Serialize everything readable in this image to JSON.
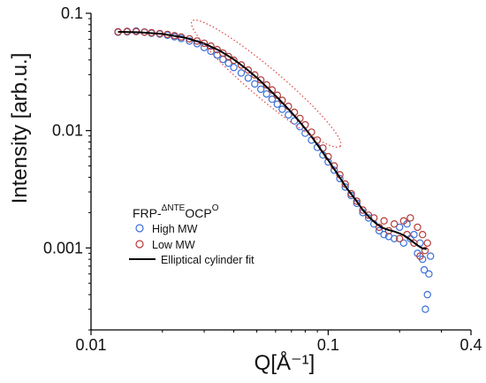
{
  "chart_data": {
    "type": "scatter",
    "title": "",
    "xlabel": "Q[Å⁻¹]",
    "ylabel": "Intensity [arb.u.]",
    "x_scale": "log",
    "y_scale": "log",
    "xlim": [
      0.01,
      0.4
    ],
    "ylim": [
      0.0002,
      0.1
    ],
    "x_ticks": [
      {
        "value": 0.01,
        "label": "0.01"
      },
      {
        "value": 0.1,
        "label": "0.1"
      },
      {
        "value": 0.4,
        "label": "0.4"
      }
    ],
    "y_ticks": [
      {
        "value": 0.1,
        "label": "0.1"
      },
      {
        "value": 0.01,
        "label": "0.01"
      },
      {
        "value": 0.001,
        "label": "0.001"
      }
    ],
    "legend": {
      "position": "lower-left",
      "title_prefix": "FRP-",
      "title_sup1": "ΔNTE",
      "title_mid": "OCP",
      "title_sup2": "O"
    },
    "series": [
      {
        "name": "High MW",
        "style": "open-circle",
        "color": "#3a6fd8",
        "points": [
          [
            0.013,
            0.069
          ],
          [
            0.0142,
            0.0695
          ],
          [
            0.0155,
            0.0705
          ],
          [
            0.0168,
            0.0692
          ],
          [
            0.018,
            0.0675
          ],
          [
            0.0195,
            0.0665
          ],
          [
            0.021,
            0.065
          ],
          [
            0.0225,
            0.063
          ],
          [
            0.024,
            0.061
          ],
          [
            0.026,
            0.058
          ],
          [
            0.028,
            0.055
          ],
          [
            0.03,
            0.051
          ],
          [
            0.032,
            0.0475
          ],
          [
            0.034,
            0.044
          ],
          [
            0.036,
            0.0405
          ],
          [
            0.038,
            0.0375
          ],
          [
            0.04,
            0.0345
          ],
          [
            0.043,
            0.031
          ],
          [
            0.046,
            0.028
          ],
          [
            0.049,
            0.025
          ],
          [
            0.052,
            0.0225
          ],
          [
            0.055,
            0.0205
          ],
          [
            0.058,
            0.0185
          ],
          [
            0.061,
            0.0168
          ],
          [
            0.064,
            0.0152
          ],
          [
            0.068,
            0.0136
          ],
          [
            0.072,
            0.0121
          ],
          [
            0.076,
            0.0108
          ],
          [
            0.08,
            0.0095
          ],
          [
            0.085,
            0.0083
          ],
          [
            0.09,
            0.0072
          ],
          [
            0.095,
            0.0062
          ],
          [
            0.1,
            0.0054
          ],
          [
            0.106,
            0.0046
          ],
          [
            0.112,
            0.0039
          ],
          [
            0.118,
            0.0033
          ],
          [
            0.125,
            0.0028
          ],
          [
            0.132,
            0.0024
          ],
          [
            0.14,
            0.002
          ],
          [
            0.148,
            0.0018
          ],
          [
            0.156,
            0.0016
          ],
          [
            0.164,
            0.0014
          ],
          [
            0.172,
            0.0013
          ],
          [
            0.18,
            0.00125
          ],
          [
            0.19,
            0.0012
          ],
          [
            0.2,
            0.0015
          ],
          [
            0.208,
            0.0011
          ],
          [
            0.215,
            0.0016
          ],
          [
            0.222,
            0.0012
          ],
          [
            0.23,
            0.0013
          ],
          [
            0.238,
            0.0009
          ],
          [
            0.244,
            0.0011
          ],
          [
            0.25,
            0.0008
          ],
          [
            0.254,
            0.00065
          ],
          [
            0.257,
            0.0003
          ],
          [
            0.262,
            0.0004
          ],
          [
            0.266,
            0.0006
          ],
          [
            0.27,
            0.00085
          ]
        ]
      },
      {
        "name": "Low MW",
        "style": "open-circle",
        "color": "#b23a3a",
        "points": [
          [
            0.013,
            0.0695
          ],
          [
            0.0142,
            0.07
          ],
          [
            0.0155,
            0.0698
          ],
          [
            0.0168,
            0.069
          ],
          [
            0.018,
            0.0682
          ],
          [
            0.0195,
            0.0672
          ],
          [
            0.021,
            0.066
          ],
          [
            0.0225,
            0.0645
          ],
          [
            0.024,
            0.0628
          ],
          [
            0.026,
            0.0605
          ],
          [
            0.028,
            0.058
          ],
          [
            0.03,
            0.0555
          ],
          [
            0.032,
            0.0525
          ],
          [
            0.034,
            0.049
          ],
          [
            0.036,
            0.0458
          ],
          [
            0.038,
            0.0428
          ],
          [
            0.04,
            0.0398
          ],
          [
            0.043,
            0.0362
          ],
          [
            0.046,
            0.0328
          ],
          [
            0.049,
            0.0298
          ],
          [
            0.052,
            0.027
          ],
          [
            0.055,
            0.0245
          ],
          [
            0.058,
            0.0222
          ],
          [
            0.061,
            0.02
          ],
          [
            0.064,
            0.0181
          ],
          [
            0.068,
            0.0161
          ],
          [
            0.072,
            0.0143
          ],
          [
            0.076,
            0.0127
          ],
          [
            0.08,
            0.0112
          ],
          [
            0.085,
            0.0097
          ],
          [
            0.09,
            0.0083
          ],
          [
            0.095,
            0.0071
          ],
          [
            0.1,
            0.006
          ],
          [
            0.106,
            0.005
          ],
          [
            0.112,
            0.0042
          ],
          [
            0.118,
            0.0035
          ],
          [
            0.125,
            0.0029
          ],
          [
            0.132,
            0.0025
          ],
          [
            0.14,
            0.0021
          ],
          [
            0.148,
            0.0019
          ],
          [
            0.156,
            0.0018
          ],
          [
            0.164,
            0.0015
          ],
          [
            0.172,
            0.0017
          ],
          [
            0.18,
            0.0014
          ],
          [
            0.19,
            0.0016
          ],
          [
            0.2,
            0.0012
          ],
          [
            0.208,
            0.0017
          ],
          [
            0.215,
            0.0013
          ],
          [
            0.222,
            0.0018
          ],
          [
            0.23,
            0.0011
          ],
          [
            0.238,
            0.0015
          ],
          [
            0.244,
            0.00085
          ],
          [
            0.25,
            0.0013
          ],
          [
            0.256,
            0.00095
          ],
          [
            0.262,
            0.0011
          ]
        ]
      },
      {
        "name": "Elliptical cylinder fit",
        "style": "line",
        "color": "#000000",
        "points": [
          [
            0.013,
            0.0695
          ],
          [
            0.016,
            0.0688
          ],
          [
            0.02,
            0.0666
          ],
          [
            0.025,
            0.0618
          ],
          [
            0.03,
            0.0552
          ],
          [
            0.035,
            0.0478
          ],
          [
            0.04,
            0.0404
          ],
          [
            0.045,
            0.0338
          ],
          [
            0.05,
            0.0283
          ],
          [
            0.055,
            0.0236
          ],
          [
            0.06,
            0.0198
          ],
          [
            0.065,
            0.0168
          ],
          [
            0.07,
            0.0143
          ],
          [
            0.075,
            0.0122
          ],
          [
            0.08,
            0.0104
          ],
          [
            0.085,
            0.0089
          ],
          [
            0.09,
            0.0076
          ],
          [
            0.095,
            0.0065
          ],
          [
            0.1,
            0.0056
          ],
          [
            0.11,
            0.0042
          ],
          [
            0.12,
            0.0032
          ],
          [
            0.13,
            0.0026
          ],
          [
            0.14,
            0.0021
          ],
          [
            0.15,
            0.0018
          ],
          [
            0.16,
            0.0016
          ],
          [
            0.17,
            0.00148
          ],
          [
            0.18,
            0.00142
          ],
          [
            0.19,
            0.00138
          ],
          [
            0.2,
            0.00133
          ],
          [
            0.21,
            0.00127
          ],
          [
            0.22,
            0.00119
          ],
          [
            0.23,
            0.00111
          ],
          [
            0.24,
            0.00104
          ],
          [
            0.25,
            0.00099
          ],
          [
            0.26,
            0.00098
          ]
        ]
      }
    ],
    "annotations": [
      {
        "type": "dotted-ellipse",
        "color": "#e05050",
        "from": [
          0.03,
          0.07
        ],
        "to": [
          0.1,
          0.009
        ]
      }
    ]
  }
}
